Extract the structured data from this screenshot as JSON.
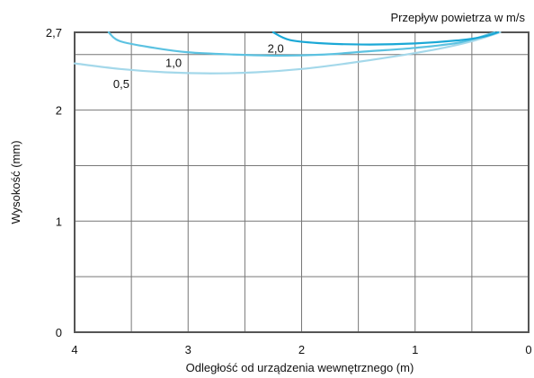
{
  "chart_data": {
    "type": "line",
    "title": "",
    "legend_title": "Przepływ powietrza w m/s",
    "xlabel": "Odległość od urządzenia wewnętrznego (m)",
    "ylabel": "Wysokość (mm)",
    "xlim": [
      4,
      0
    ],
    "ylim": [
      0,
      2.7
    ],
    "x_ticks": [
      {
        "value": 4,
        "label": "4"
      },
      {
        "value": 3,
        "label": "3"
      },
      {
        "value": 2,
        "label": "2"
      },
      {
        "value": 1,
        "label": "1"
      },
      {
        "value": 0,
        "label": "0"
      }
    ],
    "y_ticks": [
      {
        "value": 0,
        "label": "0"
      },
      {
        "value": 1,
        "label": "1"
      },
      {
        "value": 2,
        "label": "2"
      },
      {
        "value": 2.7,
        "label": "2,7"
      }
    ],
    "grid": {
      "x_step": 0.5,
      "y_step": 0.5,
      "show": true
    },
    "series": [
      {
        "name": "0,5",
        "color": "#a4d8ea",
        "label_at": [
          3.66,
          2.2
        ],
        "points": [
          [
            4.0,
            2.42
          ],
          [
            3.6,
            2.37
          ],
          [
            3.2,
            2.34
          ],
          [
            2.8,
            2.33
          ],
          [
            2.4,
            2.34
          ],
          [
            2.0,
            2.37
          ],
          [
            1.6,
            2.42
          ],
          [
            1.2,
            2.48
          ],
          [
            0.8,
            2.55
          ],
          [
            0.5,
            2.62
          ],
          [
            0.25,
            2.7
          ]
        ]
      },
      {
        "name": "1,0",
        "color": "#5cc2e1",
        "label_at": [
          3.2,
          2.39
        ],
        "points": [
          [
            3.7,
            2.7
          ],
          [
            3.6,
            2.62
          ],
          [
            3.3,
            2.56
          ],
          [
            3.0,
            2.52
          ],
          [
            2.6,
            2.5
          ],
          [
            2.2,
            2.49
          ],
          [
            1.8,
            2.5
          ],
          [
            1.4,
            2.53
          ],
          [
            1.0,
            2.56
          ],
          [
            0.6,
            2.61
          ],
          [
            0.3,
            2.7
          ]
        ]
      },
      {
        "name": "2,0",
        "color": "#1ba8d6",
        "label_at": [
          2.3,
          2.52
        ],
        "points": [
          [
            2.25,
            2.7
          ],
          [
            2.1,
            2.63
          ],
          [
            1.8,
            2.6
          ],
          [
            1.4,
            2.59
          ],
          [
            1.0,
            2.6
          ],
          [
            0.6,
            2.63
          ],
          [
            0.4,
            2.66
          ],
          [
            0.27,
            2.7
          ]
        ]
      }
    ]
  }
}
